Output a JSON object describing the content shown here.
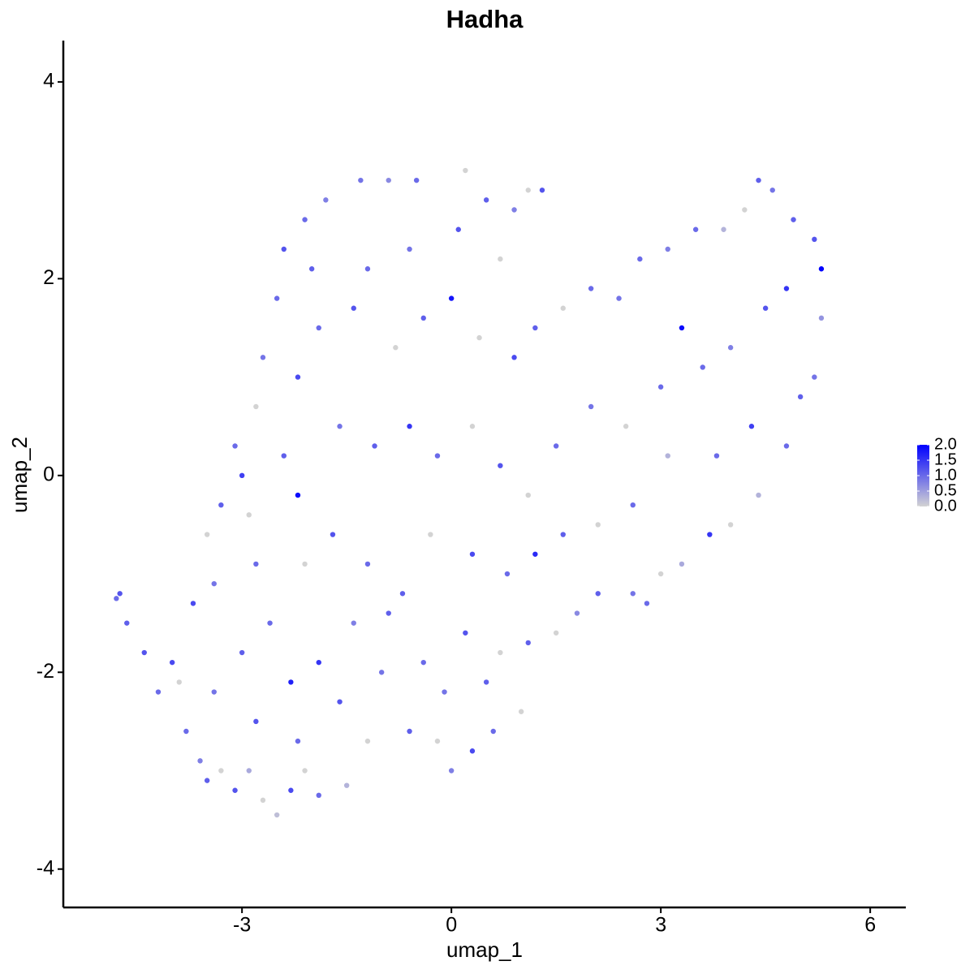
{
  "chart_data": {
    "type": "scatter",
    "title": "Hadha",
    "x_label": "umap_1",
    "y_label": "umap_2",
    "xlim": [
      -5.56,
      6.51
    ],
    "ylim": [
      -4.39,
      4.42
    ],
    "xticks": [
      -3,
      0,
      3,
      6
    ],
    "yticks": [
      -4,
      -2,
      0,
      2,
      4
    ],
    "grid": false,
    "legend_position": "right",
    "low_color": "#d3d3d3",
    "high_color": "#0000ff",
    "color_lim": [
      0,
      2
    ],
    "color_ticks": [
      {
        "value": 2,
        "label": "2.0"
      },
      {
        "value": 1.5,
        "label": "1.5"
      },
      {
        "value": 1,
        "label": "1.0"
      },
      {
        "value": 0.5,
        "label": "0.5"
      },
      {
        "value": 0,
        "label": "0.0"
      }
    ],
    "x": [
      -4.8,
      -4.75,
      -4.65,
      -4.4,
      -4.2,
      -4.0,
      -3.9,
      -3.8,
      -3.6,
      -3.5,
      -3.3,
      -3.1,
      -2.9,
      -2.7,
      -2.5,
      -2.3,
      -2.1,
      -1.9,
      -1.5,
      -1.2,
      -3.7,
      -3.4,
      -3.3,
      -3.0,
      -2.9,
      -3.1,
      -2.8,
      -2.7,
      -2.5,
      -2.4,
      -2.1,
      -1.8,
      -1.3,
      -0.9,
      -0.5,
      0.2,
      0.5,
      0.9,
      1.1,
      1.3,
      -2.2,
      -2.3,
      -1.9,
      -1.6,
      -1.0,
      -0.6,
      -0.2,
      0.0,
      0.3,
      0.6,
      1.0,
      1.1,
      1.5,
      1.8,
      2.1,
      2.6,
      2.8,
      3.0,
      3.3,
      3.7,
      4.0,
      4.4,
      4.8,
      5.0,
      5.2,
      5.3,
      5.3,
      5.2,
      4.9,
      4.6,
      4.4,
      4.2,
      3.9,
      3.5,
      3.1,
      2.7,
      2.4,
      2.0,
      1.6,
      1.2,
      0.9,
      0.4,
      0.0,
      -0.4,
      -0.8,
      -1.4,
      -1.9,
      -2.2,
      -1.6,
      -1.1,
      -0.6,
      -0.2,
      0.3,
      0.7,
      1.1,
      1.5,
      2.0,
      2.5,
      3.0,
      3.3,
      3.6,
      4.0,
      4.5,
      4.8,
      4.3,
      3.8,
      3.1,
      2.6,
      2.1,
      1.6,
      1.2,
      0.8,
      0.3,
      -0.3,
      -0.7,
      -1.2,
      -1.7,
      -2.1,
      -2.6,
      -3.0,
      -3.4,
      -2.8,
      -2.2,
      -1.4,
      -0.9,
      -0.4,
      0.2,
      0.7,
      0.5,
      -0.1,
      -2.4,
      -2.8,
      -3.5,
      -1.2,
      -0.6,
      0.1,
      0.7,
      -2.0
    ],
    "y": [
      -1.25,
      -1.2,
      -1.5,
      -1.8,
      -2.2,
      -1.9,
      -2.1,
      -2.6,
      -2.9,
      -3.1,
      -3.0,
      -3.2,
      -3.0,
      -3.3,
      -3.45,
      -3.2,
      -3.0,
      -3.25,
      -3.15,
      -2.7,
      -1.3,
      -1.1,
      -0.3,
      0.0,
      -0.4,
      0.3,
      0.7,
      1.2,
      1.8,
      2.3,
      2.6,
      2.8,
      3.0,
      3.0,
      3.0,
      3.1,
      2.8,
      2.7,
      2.9,
      2.9,
      -0.2,
      -2.1,
      -1.9,
      -2.3,
      -2.0,
      -2.6,
      -2.7,
      -3.0,
      -2.8,
      -2.6,
      -2.4,
      -1.7,
      -1.6,
      -1.4,
      -1.2,
      -1.2,
      -1.3,
      -1.0,
      -0.9,
      -0.6,
      -0.5,
      -0.2,
      0.3,
      0.8,
      1.0,
      1.6,
      2.1,
      2.4,
      2.6,
      2.9,
      3.0,
      2.7,
      2.5,
      2.5,
      2.3,
      2.2,
      1.8,
      1.9,
      1.7,
      1.5,
      1.2,
      1.4,
      1.8,
      1.6,
      1.3,
      1.7,
      1.5,
      1.0,
      0.5,
      0.3,
      0.5,
      0.2,
      0.5,
      0.1,
      -0.2,
      0.3,
      0.7,
      0.5,
      0.9,
      1.5,
      1.1,
      1.3,
      1.7,
      1.9,
      0.5,
      0.2,
      0.2,
      -0.3,
      -0.5,
      -0.6,
      -0.8,
      -1.0,
      -0.8,
      -0.6,
      -1.2,
      -0.9,
      -0.6,
      -0.9,
      -1.5,
      -1.8,
      -2.2,
      -2.5,
      -2.7,
      -1.5,
      -1.4,
      -1.9,
      -1.6,
      -1.8,
      -2.1,
      -2.2,
      0.2,
      -0.9,
      -0.6,
      2.1,
      2.3,
      2.5,
      2.2,
      2.1
    ],
    "color_values": [
      1.0,
      1.2,
      1.1,
      1.2,
      1.0,
      1.3,
      0.0,
      1.0,
      0.8,
      1.1,
      0.0,
      1.2,
      0.4,
      0.0,
      0.2,
      1.3,
      0.0,
      1.0,
      0.3,
      0.0,
      1.3,
      0.9,
      1.1,
      1.4,
      0.0,
      1.0,
      0.0,
      0.9,
      1.0,
      1.2,
      1.0,
      0.8,
      0.9,
      0.7,
      1.0,
      0.0,
      1.1,
      0.8,
      0.0,
      1.2,
      1.9,
      1.7,
      1.5,
      1.2,
      0.9,
      1.1,
      0.0,
      0.8,
      1.3,
      1.0,
      0.0,
      1.1,
      0.0,
      0.7,
      1.1,
      0.9,
      1.0,
      0.0,
      0.4,
      1.5,
      0.0,
      0.3,
      1.0,
      1.1,
      0.9,
      0.6,
      2.0,
      1.2,
      1.1,
      0.9,
      1.1,
      0.0,
      0.3,
      1.0,
      0.8,
      1.0,
      0.9,
      1.0,
      0.0,
      1.1,
      1.3,
      0.0,
      1.8,
      1.1,
      0.0,
      1.2,
      1.0,
      1.3,
      0.9,
      1.1,
      1.5,
      1.0,
      0.0,
      1.2,
      0.0,
      1.0,
      0.9,
      0.0,
      1.0,
      1.9,
      1.0,
      0.8,
      1.2,
      1.5,
      1.4,
      1.0,
      0.3,
      1.0,
      0.0,
      1.1,
      1.6,
      1.0,
      1.3,
      0.0,
      1.1,
      1.0,
      1.2,
      0.0,
      1.0,
      1.1,
      0.9,
      1.2,
      1.0,
      0.8,
      1.1,
      1.0,
      1.2,
      0.0,
      1.1,
      0.9,
      1.1,
      1.0,
      0.0,
      1.0,
      0.9,
      1.2,
      0.0,
      1.1
    ]
  }
}
